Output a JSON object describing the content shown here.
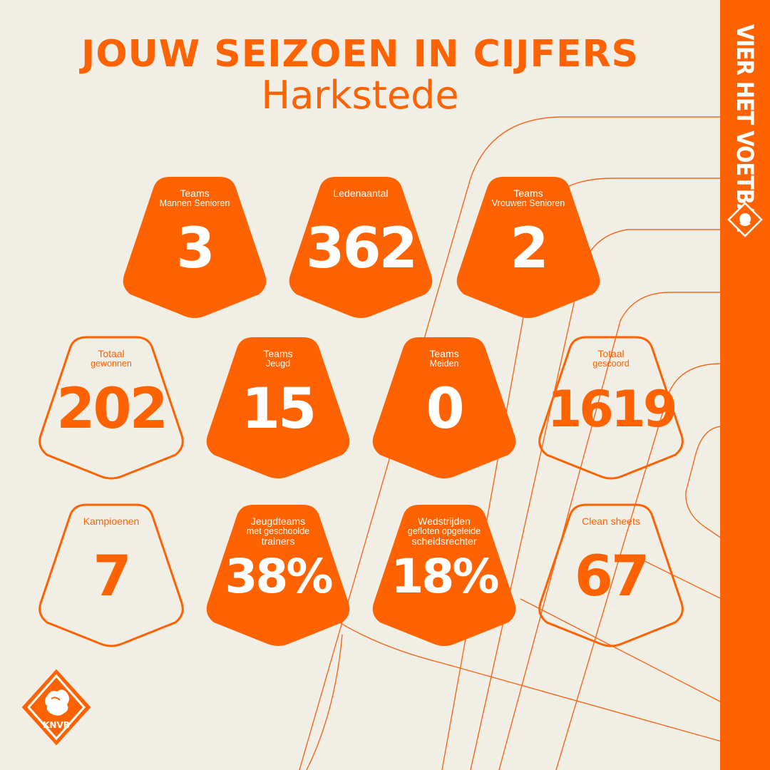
{
  "header": {
    "title": "JOUW SEIZOEN IN CIJFERS",
    "subtitle": "Harkstede"
  },
  "sidebar": {
    "slogan": "VIER HET VOETBAL",
    "logo_icon": "knvb-lion-icon"
  },
  "colors": {
    "accent": "#ff6200",
    "background": "#f1eee6",
    "text_on_accent": "#ffffff"
  },
  "stats": [
    {
      "label_line1": "Teams",
      "label_line2": "Mannen Senioren",
      "label_line3": "",
      "value": "3",
      "style": "filled"
    },
    {
      "label_line1": "Ledenaantal",
      "label_line2": "",
      "label_line3": "",
      "value": "362",
      "style": "filled"
    },
    {
      "label_line1": "Teams",
      "label_line2": "Vrouwen Senioren",
      "label_line3": "",
      "value": "2",
      "style": "filled"
    },
    {
      "label_line1": "Totaal",
      "label_line2": "gewonnen",
      "label_line3": "",
      "value": "202",
      "style": "outline"
    },
    {
      "label_line1": "Teams",
      "label_line2": "Jeugd",
      "label_line3": "",
      "value": "15",
      "style": "filled"
    },
    {
      "label_line1": "Teams",
      "label_line2": "Meiden",
      "label_line3": "",
      "value": "0",
      "style": "filled"
    },
    {
      "label_line1": "Totaal",
      "label_line2": "gescoord",
      "label_line3": "",
      "value": "1619",
      "style": "outline"
    },
    {
      "label_line1": "Kampioenen",
      "label_line2": "",
      "label_line3": "",
      "value": "7",
      "style": "outline"
    },
    {
      "label_line1": "Jeugdteams",
      "label_line2": "met geschoolde",
      "label_line3": "trainers",
      "value": "38%",
      "style": "filled"
    },
    {
      "label_line1": "Wedstrijden",
      "label_line2": "gefloten opgeleide",
      "label_line3": "scheidsrechter",
      "value": "18%",
      "style": "filled"
    },
    {
      "label_line1": "Clean sheets",
      "label_line2": "",
      "label_line3": "",
      "value": "67",
      "style": "outline"
    }
  ],
  "footer": {
    "logo_text": "KNVB",
    "logo_icon": "knvb-lion-icon"
  }
}
